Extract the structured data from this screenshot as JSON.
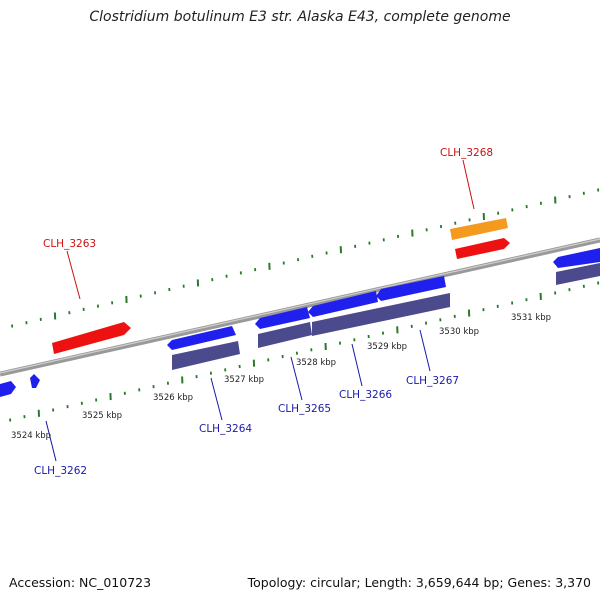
{
  "title": "Clostridium botulinum E3 str. Alaska E43, complete genome",
  "footer": {
    "accession": "Accession: NC_010723",
    "summary": "Topology: circular; Length: 3,659,644 bp; Genes: 3,370"
  },
  "colors": {
    "backbone": "#888888",
    "ticks": "#2a7a2a",
    "forward_gene": "#2020ee",
    "reverse_gene": "#ee1111",
    "cds_forward": "#4a4a8c",
    "other_feature": "#f39a1f",
    "label_forward": "#1a1aaa",
    "label_reverse": "#cc1111"
  },
  "scale_labels": [
    "3524 kbp",
    "3525 kbp",
    "3526 kbp",
    "3527 kbp",
    "3528 kbp",
    "3529 kbp",
    "3530 kbp",
    "3531 kbp"
  ],
  "genes": [
    {
      "id": "CLH_3262",
      "strand": "forward"
    },
    {
      "id": "CLH_3263",
      "strand": "reverse"
    },
    {
      "id": "CLH_3264",
      "strand": "forward"
    },
    {
      "id": "CLH_3265",
      "strand": "forward"
    },
    {
      "id": "CLH_3266",
      "strand": "forward"
    },
    {
      "id": "CLH_3267",
      "strand": "forward"
    },
    {
      "id": "CLH_3268",
      "strand": "reverse"
    }
  ]
}
